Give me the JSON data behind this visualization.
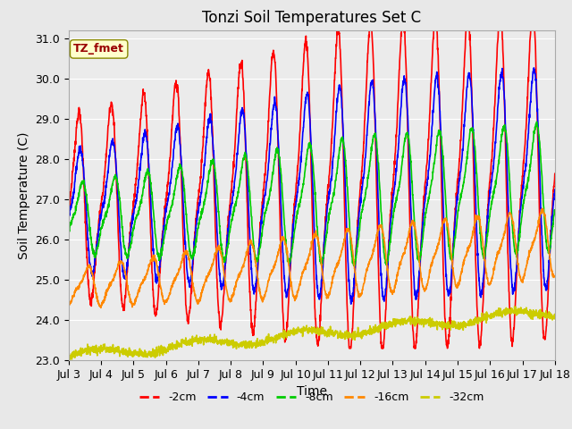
{
  "title": "Tonzi Soil Temperatures Set C",
  "xlabel": "Time",
  "ylabel": "Soil Temperature (C)",
  "ylim": [
    23.0,
    31.2
  ],
  "xlim_days": [
    3,
    18
  ],
  "xticks": [
    3,
    4,
    5,
    6,
    7,
    8,
    9,
    10,
    11,
    12,
    13,
    14,
    15,
    16,
    17,
    18
  ],
  "xtick_labels": [
    "Jul 3",
    "Jul 4",
    "Jul 5",
    "Jul 6",
    "Jul 7",
    "Jul 8",
    "Jul 9",
    "Jul 10",
    "Jul 11",
    "Jul 12",
    "Jul 13",
    "Jul 14",
    "Jul 15",
    "Jul 16",
    "Jul 17",
    "Jul 18"
  ],
  "yticks": [
    23.0,
    24.0,
    25.0,
    26.0,
    27.0,
    28.0,
    29.0,
    30.0,
    31.0
  ],
  "series": {
    "-2cm": {
      "color": "#ff0000",
      "linewidth": 1.2
    },
    "-4cm": {
      "color": "#0000ff",
      "linewidth": 1.2
    },
    "-8cm": {
      "color": "#00cc00",
      "linewidth": 1.2
    },
    "-16cm": {
      "color": "#ff8800",
      "linewidth": 1.2
    },
    "-32cm": {
      "color": "#cccc00",
      "linewidth": 1.2
    }
  },
  "legend_order": [
    "-2cm",
    "-4cm",
    "-8cm",
    "-16cm",
    "-32cm"
  ],
  "annotation_text": "TZ_fmet",
  "bg_color": "#e8e8e8",
  "plot_bg": "#ebebeb",
  "title_fontsize": 12,
  "axis_fontsize": 10,
  "tick_fontsize": 9
}
